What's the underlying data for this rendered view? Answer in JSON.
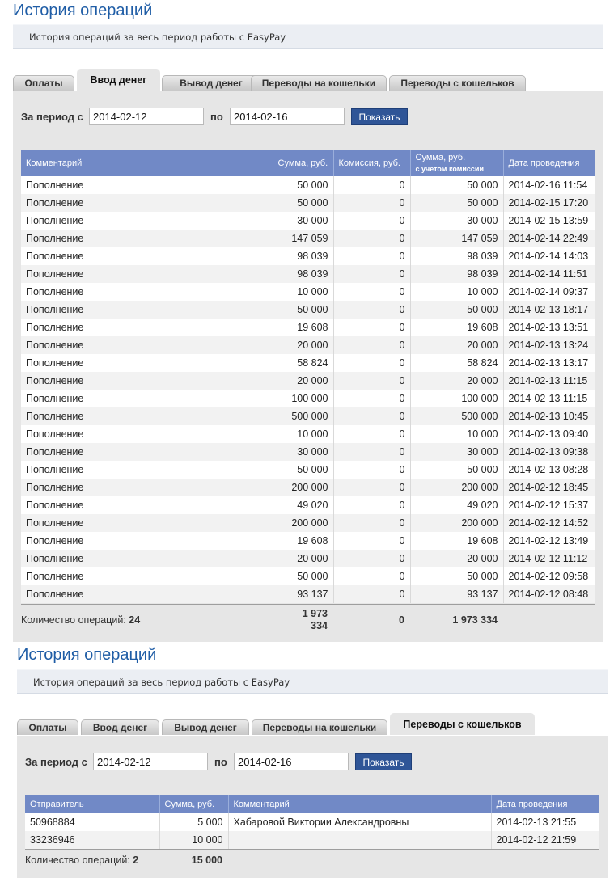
{
  "top": {
    "title": "История операций",
    "subtitle": "История операций за весь период работы с EasyPay",
    "tabs": [
      "Оплаты",
      "Ввод денег",
      "Вывод денег",
      "Переводы на кошельки",
      "Переводы с кошельков"
    ],
    "active_tab": "Ввод денег",
    "filter": {
      "from_label": "За период с",
      "from_value": "2014-02-12",
      "to_label": "по",
      "to_value": "2014-02-16",
      "button": "Показать"
    },
    "columns": [
      "Комментарий",
      "Сумма, руб.",
      "Комиссия, руб.",
      "Сумма, руб.",
      "с учетом комиссии",
      "Дата проведения"
    ],
    "rows": [
      [
        "Пополнение",
        "50 000",
        "0",
        "50 000",
        "2014-02-16 11:54"
      ],
      [
        "Пополнение",
        "50 000",
        "0",
        "50 000",
        "2014-02-15 17:20"
      ],
      [
        "Пополнение",
        "30 000",
        "0",
        "30 000",
        "2014-02-15 13:59"
      ],
      [
        "Пополнение",
        "147 059",
        "0",
        "147 059",
        "2014-02-14 22:49"
      ],
      [
        "Пополнение",
        "98 039",
        "0",
        "98 039",
        "2014-02-14 14:03"
      ],
      [
        "Пополнение",
        "98 039",
        "0",
        "98 039",
        "2014-02-14 11:51"
      ],
      [
        "Пополнение",
        "10 000",
        "0",
        "10 000",
        "2014-02-14 09:37"
      ],
      [
        "Пополнение",
        "50 000",
        "0",
        "50 000",
        "2014-02-13 18:17"
      ],
      [
        "Пополнение",
        "19 608",
        "0",
        "19 608",
        "2014-02-13 13:51"
      ],
      [
        "Пополнение",
        "20 000",
        "0",
        "20 000",
        "2014-02-13 13:24"
      ],
      [
        "Пополнение",
        "58 824",
        "0",
        "58 824",
        "2014-02-13 13:17"
      ],
      [
        "Пополнение",
        "20 000",
        "0",
        "20 000",
        "2014-02-13 11:15"
      ],
      [
        "Пополнение",
        "100 000",
        "0",
        "100 000",
        "2014-02-13 11:15"
      ],
      [
        "Пополнение",
        "500 000",
        "0",
        "500 000",
        "2014-02-13 10:45"
      ],
      [
        "Пополнение",
        "10 000",
        "0",
        "10 000",
        "2014-02-13 09:40"
      ],
      [
        "Пополнение",
        "30 000",
        "0",
        "30 000",
        "2014-02-13 09:38"
      ],
      [
        "Пополнение",
        "50 000",
        "0",
        "50 000",
        "2014-02-13 08:28"
      ],
      [
        "Пополнение",
        "200 000",
        "0",
        "200 000",
        "2014-02-12 18:45"
      ],
      [
        "Пополнение",
        "49 020",
        "0",
        "49 020",
        "2014-02-12 15:37"
      ],
      [
        "Пополнение",
        "200 000",
        "0",
        "200 000",
        "2014-02-12 14:52"
      ],
      [
        "Пополнение",
        "19 608",
        "0",
        "19 608",
        "2014-02-12 13:49"
      ],
      [
        "Пополнение",
        "20 000",
        "0",
        "20 000",
        "2014-02-12 11:12"
      ],
      [
        "Пополнение",
        "50 000",
        "0",
        "50 000",
        "2014-02-12 09:58"
      ],
      [
        "Пополнение",
        "93 137",
        "0",
        "93 137",
        "2014-02-12 08:48"
      ]
    ],
    "totals": {
      "label": "Количество операций:",
      "count": "24",
      "sum_line1": "1 973",
      "sum_line2": "334",
      "commission": "0",
      "sum_with_commission": "1 973 334"
    }
  },
  "bottom": {
    "title": "История операций",
    "subtitle": "История операций за весь период работы с EasyPay",
    "tabs": [
      "Оплаты",
      "Ввод денег",
      "Вывод денег",
      "Переводы на кошельки",
      "Переводы с кошельков"
    ],
    "active_tab": "Переводы с кошельков",
    "filter": {
      "from_label": "За период с",
      "from_value": "2014-02-12",
      "to_label": "по",
      "to_value": "2014-02-16",
      "button": "Показать"
    },
    "columns": [
      "Отправитель",
      "Сумма, руб.",
      "Комментарий",
      "Дата проведения"
    ],
    "rows": [
      [
        "50968884",
        "5 000",
        "Хабаровой Виктории Александровны",
        "2014-02-13 21:55"
      ],
      [
        "33236946",
        "10 000",
        "",
        "2014-02-12 21:59"
      ]
    ],
    "totals": {
      "label": "Количество операций:",
      "count": "2",
      "sum": "15 000"
    }
  }
}
